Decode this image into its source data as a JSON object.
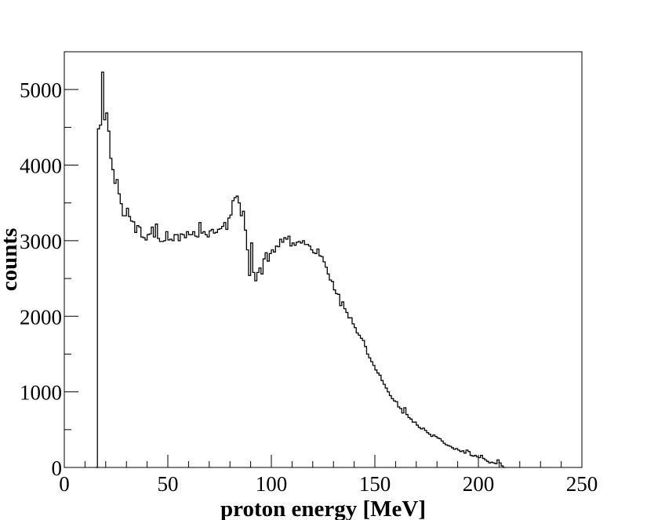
{
  "chart_data": {
    "type": "histogram",
    "title": "",
    "xlabel": "proton energy [MeV]",
    "ylabel": "counts",
    "xlim": [
      0,
      250
    ],
    "ylim": [
      0,
      5500
    ],
    "grid": false,
    "legend": "none",
    "xticks": [
      0,
      50,
      100,
      150,
      200,
      250
    ],
    "xtick_labels": [
      "0",
      "50",
      "100",
      "150",
      "200",
      "250"
    ],
    "yticks": [
      0,
      1000,
      2000,
      3000,
      4000,
      5000
    ],
    "ytick_labels": [
      "0",
      "1000",
      "2000",
      "3000",
      "4000",
      "5000"
    ],
    "bin_width": 1,
    "x_start": 15,
    "counts": [
      0,
      4480,
      4530,
      5230,
      4600,
      4690,
      4450,
      4090,
      3940,
      3760,
      3810,
      3620,
      3490,
      3330,
      3330,
      3430,
      3320,
      3260,
      3250,
      3110,
      3200,
      3180,
      3050,
      3040,
      3010,
      3080,
      3090,
      3180,
      3050,
      3220,
      3030,
      2990,
      2990,
      3000,
      3120,
      3010,
      3020,
      3000,
      3080,
      3080,
      3000,
      3090,
      3080,
      3040,
      3120,
      3080,
      3080,
      3120,
      3060,
      3050,
      3240,
      3100,
      3120,
      3080,
      3050,
      3130,
      3150,
      3100,
      3110,
      3150,
      3160,
      3190,
      3240,
      3150,
      3300,
      3340,
      3530,
      3570,
      3590,
      3500,
      3330,
      3390,
      3140,
      2880,
      2540,
      2970,
      2580,
      2470,
      2580,
      2640,
      2560,
      2760,
      2840,
      2730,
      2830,
      2880,
      2850,
      2930,
      2920,
      3020,
      2980,
      3040,
      3020,
      3060,
      2930,
      2970,
      2940,
      2980,
      2990,
      2970,
      3000,
      2950,
      2950,
      2930,
      2880,
      2840,
      2830,
      2890,
      2800,
      2790,
      2720,
      2650,
      2560,
      2480,
      2460,
      2350,
      2300,
      2290,
      2140,
      2190,
      2100,
      2050,
      1980,
      1980,
      1900,
      1850,
      1780,
      1750,
      1710,
      1680,
      1600,
      1500,
      1450,
      1400,
      1350,
      1290,
      1250,
      1220,
      1150,
      1100,
      1050,
      1000,
      950,
      910,
      880,
      870,
      800,
      780,
      720,
      790,
      700,
      660,
      640,
      600,
      600,
      560,
      530,
      510,
      520,
      490,
      460,
      440,
      410,
      430,
      410,
      390,
      380,
      350,
      320,
      300,
      290,
      280,
      260,
      240,
      250,
      230,
      210,
      220,
      190,
      230,
      210,
      160,
      150,
      160,
      140,
      130,
      160,
      120,
      100,
      80,
      60,
      70,
      60,
      50,
      100,
      60,
      20,
      0
    ]
  }
}
